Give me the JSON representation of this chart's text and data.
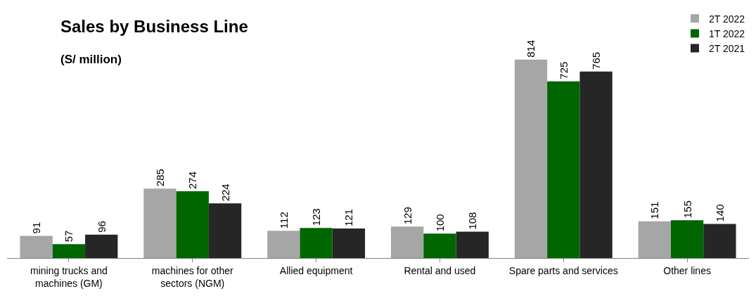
{
  "chart_data": {
    "type": "bar",
    "title": "Sales by Business Line",
    "subtitle": "(S/ million)",
    "categories": [
      "mining trucks and machines (GM)",
      "machines for other sectors (NGM)",
      "Allied equipment",
      "Rental and used",
      "Spare parts and services",
      "Other lines"
    ],
    "series": [
      {
        "name": "2T 2022",
        "color": "#a6a6a6",
        "values": [
          91,
          285,
          112,
          129,
          814,
          151
        ]
      },
      {
        "name": "1T 2022",
        "color": "#006600",
        "values": [
          57,
          274,
          123,
          100,
          725,
          155
        ]
      },
      {
        "name": "2T 2021",
        "color": "#262626",
        "values": [
          96,
          224,
          121,
          108,
          765,
          140
        ]
      }
    ],
    "data_labels": true,
    "legend": "top right"
  }
}
